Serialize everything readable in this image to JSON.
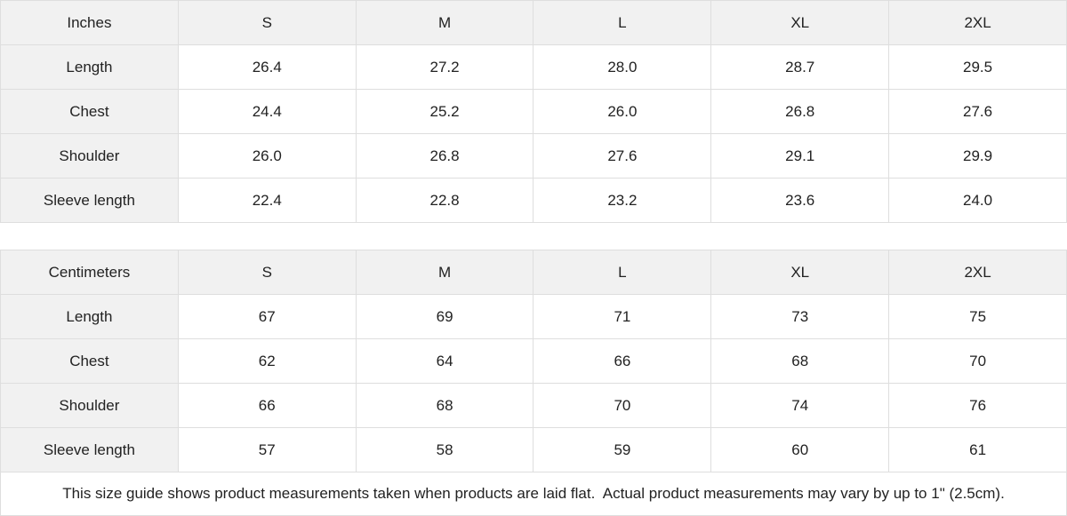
{
  "colors": {
    "header_bg": "#f1f1f1",
    "cell_bg": "#ffffff",
    "border": "#dedede",
    "text": "#222222"
  },
  "size_guide": {
    "tables": [
      {
        "unit": "Inches",
        "columns": [
          "S",
          "M",
          "L",
          "XL",
          "2XL"
        ],
        "rows": [
          {
            "label": "Length",
            "values": [
              "26.4",
              "27.2",
              "28.0",
              "28.7",
              "29.5"
            ]
          },
          {
            "label": "Chest",
            "values": [
              "24.4",
              "25.2",
              "26.0",
              "26.8",
              "27.6"
            ]
          },
          {
            "label": "Shoulder",
            "values": [
              "26.0",
              "26.8",
              "27.6",
              "29.1",
              "29.9"
            ]
          },
          {
            "label": "Sleeve length",
            "values": [
              "22.4",
              "22.8",
              "23.2",
              "23.6",
              "24.0"
            ]
          }
        ]
      },
      {
        "unit": "Centimeters",
        "columns": [
          "S",
          "M",
          "L",
          "XL",
          "2XL"
        ],
        "rows": [
          {
            "label": "Length",
            "values": [
              "67",
              "69",
              "71",
              "73",
              "75"
            ]
          },
          {
            "label": "Chest",
            "values": [
              "62",
              "64",
              "66",
              "68",
              "70"
            ]
          },
          {
            "label": "Shoulder",
            "values": [
              "66",
              "68",
              "70",
              "74",
              "76"
            ]
          },
          {
            "label": "Sleeve length",
            "values": [
              "57",
              "58",
              "59",
              "60",
              "61"
            ]
          }
        ]
      }
    ],
    "footer_note": "This size guide shows product measurements taken when products are laid flat.  Actual product measurements may vary by up to 1\" (2.5cm)."
  }
}
